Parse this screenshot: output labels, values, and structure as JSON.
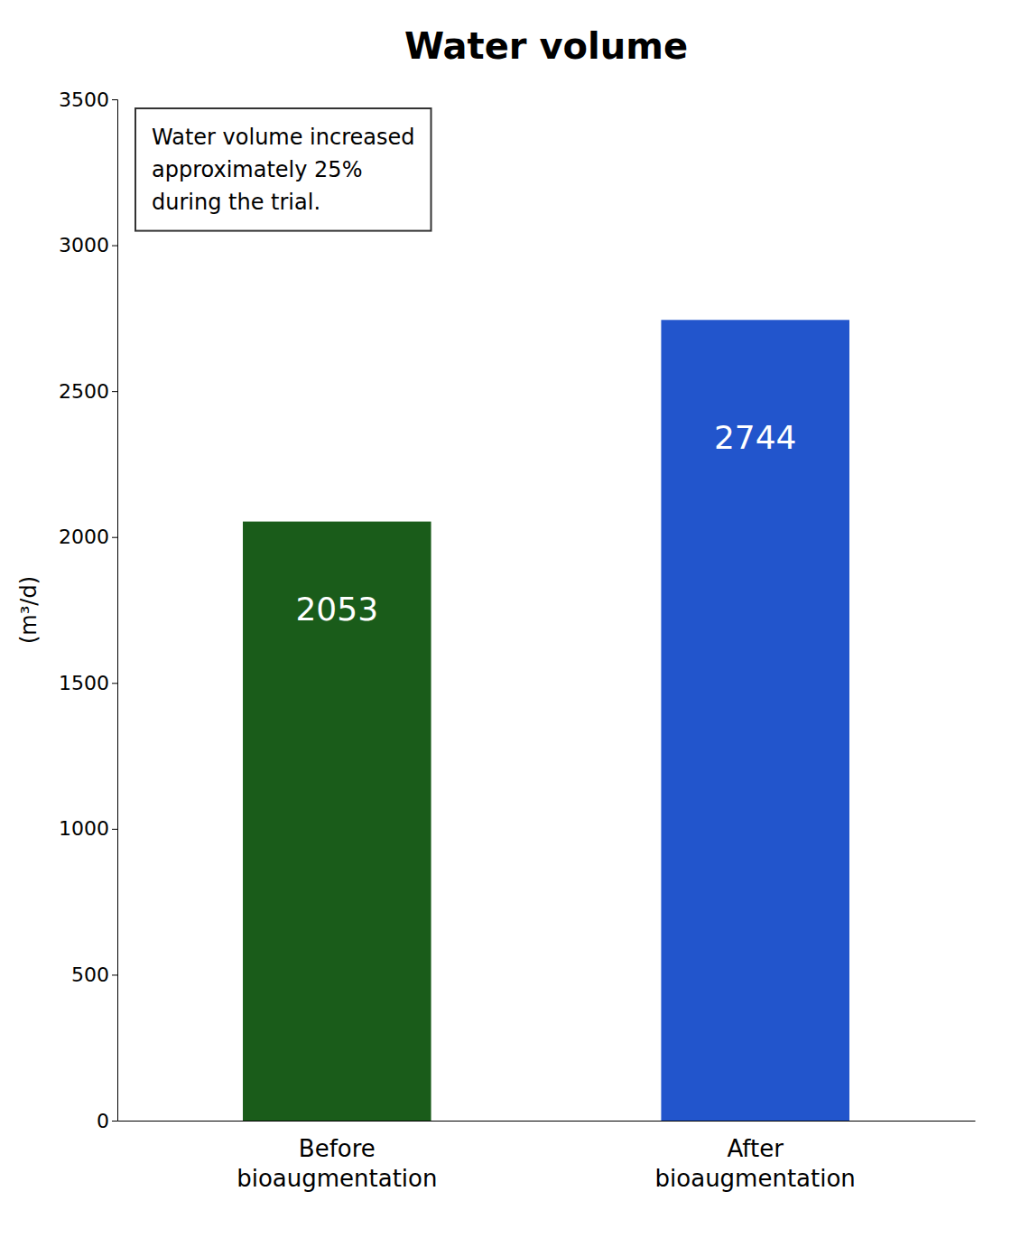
{
  "chart_data": {
    "type": "bar",
    "title": "Water volume",
    "categories": [
      "Before\nbioaugmentation",
      "After\nbioaugmentation"
    ],
    "values": [
      2053,
      2744
    ],
    "colors": [
      "#1a5c1a",
      "#2255cc"
    ],
    "ylabel": "(m³/d)",
    "ylim": [
      0,
      3500
    ],
    "yticks": [
      0,
      500,
      1000,
      1500,
      2000,
      2500,
      3000,
      3500
    ],
    "annotation": "Water volume increased\napproximately 25%\nduring the trial.",
    "data_labels": true,
    "grid": false
  }
}
